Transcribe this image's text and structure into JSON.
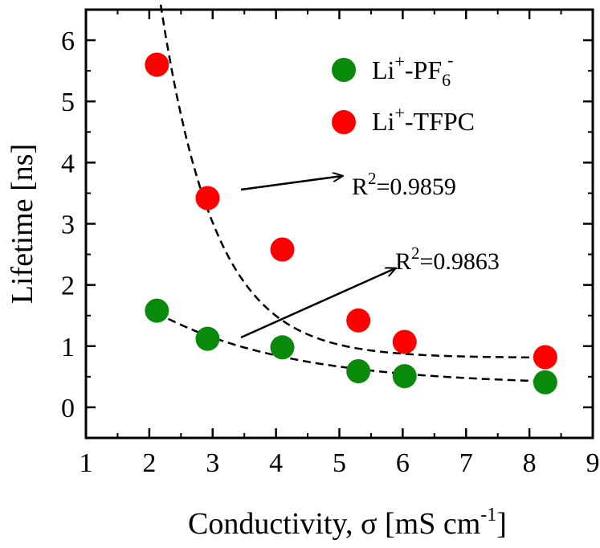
{
  "chart_data": {
    "type": "scatter",
    "title": "",
    "xlabel": "Conductivity, σ [mS cm",
    "xlabel_sup": "-1",
    "xlabel_end": "]",
    "ylabel": "Lifetime [ns]",
    "xlim": [
      1,
      9
    ],
    "ylim": [
      -0.5,
      6.5
    ],
    "xticks": [
      "1",
      "2",
      "3",
      "4",
      "5",
      "6",
      "7",
      "8",
      "9"
    ],
    "yticks": [
      "0",
      "1",
      "2",
      "3",
      "4",
      "5",
      "6"
    ],
    "grid": false,
    "legend_position": "top-right",
    "series": [
      {
        "name": "Li+-PF6-",
        "legend_parts": [
          "Li",
          "+",
          "-PF",
          "6",
          "-"
        ],
        "color": "#0a8a0a",
        "x": [
          2.12,
          2.92,
          4.1,
          5.3,
          6.03,
          8.25
        ],
        "y": [
          1.58,
          1.12,
          0.98,
          0.59,
          0.51,
          0.41
        ],
        "fit_r2_label": "R2=0.9863",
        "fit_r2_parts": [
          "R",
          "2",
          "=0.9863"
        ],
        "fit": {
          "a": 3.2,
          "b": 0.47,
          "c": 0.36
        }
      },
      {
        "name": "Li+-TFPC",
        "legend_parts": [
          "Li",
          "+",
          "-TFPC"
        ],
        "color": "#ff0000",
        "x": [
          2.12,
          2.92,
          4.1,
          5.3,
          6.03,
          8.25
        ],
        "y": [
          5.6,
          3.42,
          2.58,
          1.42,
          1.07,
          0.82
        ],
        "fit_r2_label": "R2=0.9859",
        "fit_r2_parts": [
          "R",
          "2",
          "=0.9859"
        ],
        "fit": {
          "a": 73.9,
          "b": 1.17,
          "c": 0.81
        }
      }
    ]
  }
}
